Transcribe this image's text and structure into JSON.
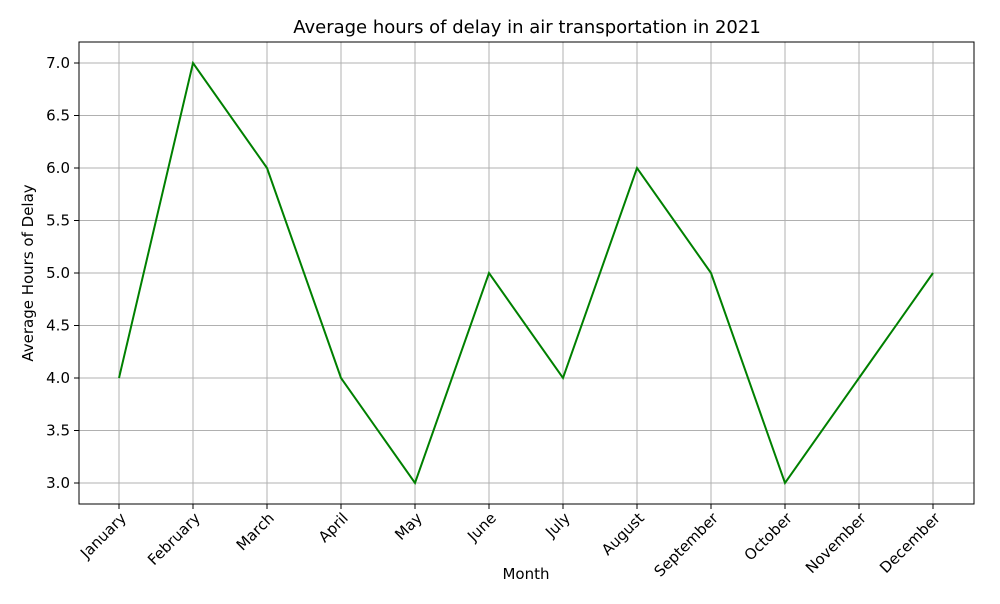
{
  "chart_data": {
    "type": "line",
    "title": "Average hours of delay in air transportation in 2021",
    "xlabel": "Month",
    "ylabel": "Average Hours of Delay",
    "categories": [
      "January",
      "February",
      "March",
      "April",
      "May",
      "June",
      "July",
      "August",
      "September",
      "October",
      "November",
      "December"
    ],
    "series": [
      {
        "values": [
          4.0,
          7.0,
          6.0,
          4.0,
          3.0,
          5.0,
          4.0,
          6.0,
          5.0,
          3.0,
          4.0,
          5.0
        ],
        "color": "#008000"
      }
    ],
    "yticks": [
      "3.0",
      "3.5",
      "4.0",
      "4.5",
      "5.0",
      "5.5",
      "6.0",
      "6.5",
      "7.0"
    ],
    "ylim": [
      2.8,
      7.2
    ],
    "grid": true,
    "grid_color": "#b0b0b0",
    "x_tick_rotation": 45
  }
}
